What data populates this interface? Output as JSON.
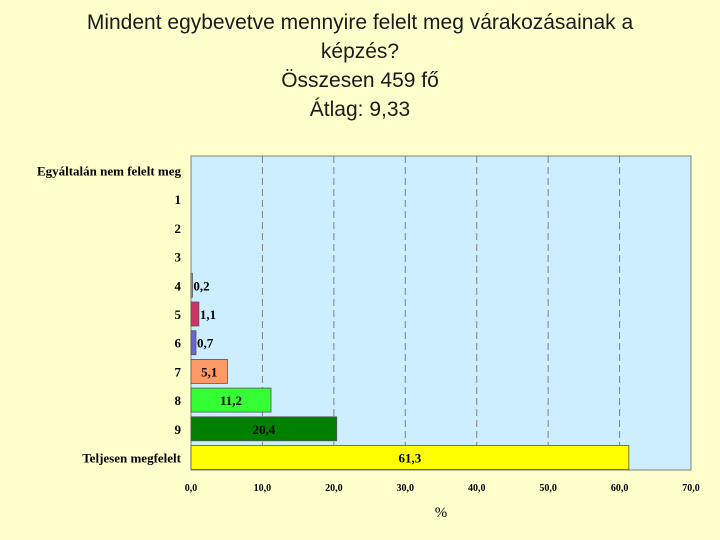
{
  "title_lines": [
    "Mindent egybevetve mennyire felelt meg várakozásainak a",
    "képzés?",
    "Összesen 459 fő",
    "Átlag: 9,33"
  ],
  "chart_data": {
    "type": "bar",
    "orientation": "horizontal",
    "categories": [
      "Egyáltalán nem felelt meg",
      "1",
      "2",
      "3",
      "4",
      "5",
      "6",
      "7",
      "8",
      "9",
      "Teljesen megfelelt"
    ],
    "values": [
      null,
      null,
      null,
      null,
      0.2,
      1.1,
      0.7,
      5.1,
      11.2,
      20.4,
      61.3
    ],
    "value_labels": [
      "",
      "",
      "",
      "",
      "0,2",
      "1,1",
      "0,7",
      "5,1",
      "11,2",
      "20,4",
      "61,3"
    ],
    "bar_colors": [
      "#9999ff",
      "#9999ff",
      "#9999ff",
      "#9999ff",
      "#9999ff",
      "#cc3366",
      "#6666cc",
      "#ff9966",
      "#33ff33",
      "#008000",
      "#ffff00"
    ],
    "x_ticks": [
      0,
      10,
      20,
      30,
      40,
      50,
      60,
      70
    ],
    "x_tick_labels": [
      "0,0",
      "10,0",
      "20,0",
      "30,0",
      "40,0",
      "50,0",
      "60,0",
      "70,0"
    ],
    "xlim": [
      0,
      70
    ],
    "xlabel": "%",
    "ylabel": "",
    "grid": "vertical dashed",
    "plot_background": "#cceeff"
  }
}
